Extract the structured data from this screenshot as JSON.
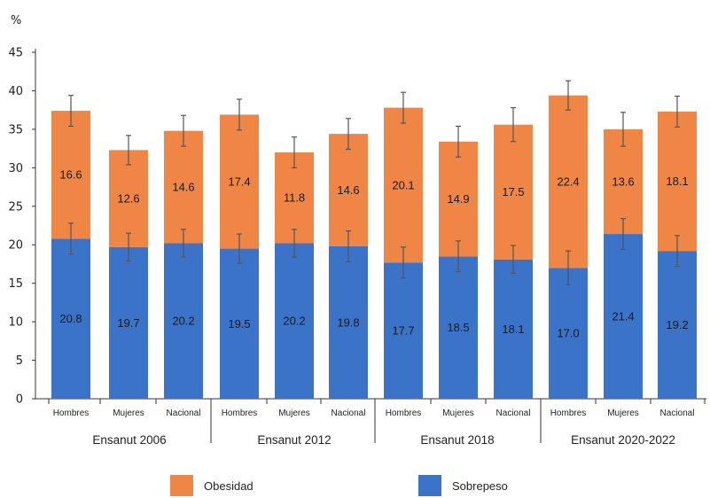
{
  "chart_data": {
    "type": "bar",
    "stacked": true,
    "ylabel": "%",
    "ylim": [
      0,
      45
    ],
    "yticks": [
      0,
      5,
      10,
      15,
      20,
      25,
      30,
      35,
      40,
      45
    ],
    "groups": [
      {
        "label": "Ensanut 2006",
        "categories": [
          "Hombres",
          "Mujeres",
          "Nacional"
        ]
      },
      {
        "label": "Ensanut 2012",
        "categories": [
          "Hombres",
          "Mujeres",
          "Nacional"
        ]
      },
      {
        "label": "Ensanut 2018",
        "categories": [
          "Hombres",
          "Mujeres",
          "Nacional"
        ]
      },
      {
        "label": "Ensanut 2020-2022",
        "categories": [
          "Hombres",
          "Mujeres",
          "Nacional"
        ]
      }
    ],
    "series": [
      {
        "name": "Sobrepeso",
        "color": "#3b73c8",
        "values": [
          20.8,
          19.7,
          20.2,
          19.5,
          20.2,
          19.8,
          17.7,
          18.5,
          18.1,
          17.0,
          21.4,
          19.2
        ],
        "labels": [
          "20.8",
          "19.7",
          "20.2",
          "19.5",
          "20.2",
          "19.8",
          "17.7",
          "18.5",
          "18.1",
          "17.0",
          "21.4",
          "19.2"
        ],
        "error": [
          2,
          1.8,
          1.8,
          1.9,
          1.8,
          2,
          2,
          2,
          1.8,
          2.2,
          2,
          2
        ]
      },
      {
        "name": "Obesidad",
        "color": "#ef8645",
        "values": [
          16.6,
          12.6,
          14.6,
          17.4,
          11.8,
          14.6,
          20.1,
          14.9,
          17.5,
          22.4,
          13.6,
          18.1
        ],
        "labels": [
          "16.6",
          "12.6",
          "14.6",
          "17.4",
          "11.8",
          "14.6",
          "20.1",
          "14.9",
          "17.5",
          "22.4",
          "13.6",
          "18.1"
        ],
        "error": [
          2,
          1.9,
          2,
          2,
          2,
          2,
          2,
          2,
          2.2,
          1.9,
          2.2,
          2
        ]
      }
    ],
    "legend": {
      "position": "bottom",
      "order": [
        "Obesidad",
        "Sobrepeso"
      ]
    }
  }
}
